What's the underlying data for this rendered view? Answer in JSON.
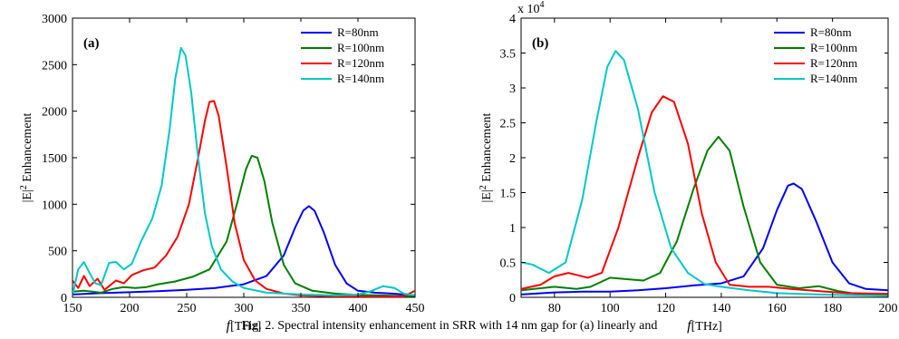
{
  "caption": "Fig. 2. Spectral intensity enhancement in SRR with 14 nm gap for (a) linearly and",
  "chart_data": [
    {
      "type": "line",
      "panel_label": "(a)",
      "xlabel_italic": "f",
      "xlabel_rest": "[THz]",
      "ylabel_main": "|E|",
      "ylabel_sup": "2",
      "ylabel_rest": " Enhancement",
      "xlim": [
        150,
        450
      ],
      "ylim": [
        0,
        3000
      ],
      "xticks": [
        "150",
        "200",
        "250",
        "300",
        "350",
        "400",
        "450"
      ],
      "yticks": [
        "0",
        "500",
        "1000",
        "1500",
        "2000",
        "2500",
        "3000"
      ],
      "y_multiplier": "",
      "grid": false,
      "legend_position": "top-right",
      "series": [
        {
          "name": "R=80nm",
          "color": "#0000ff",
          "points": [
            [
              150,
              30
            ],
            [
              175,
              45
            ],
            [
              200,
              55
            ],
            [
              225,
              65
            ],
            [
              250,
              80
            ],
            [
              275,
              100
            ],
            [
              300,
              140
            ],
            [
              320,
              230
            ],
            [
              335,
              450
            ],
            [
              345,
              750
            ],
            [
              352,
              930
            ],
            [
              357,
              980
            ],
            [
              362,
              930
            ],
            [
              370,
              700
            ],
            [
              380,
              350
            ],
            [
              390,
              150
            ],
            [
              400,
              70
            ],
            [
              415,
              50
            ],
            [
              430,
              40
            ],
            [
              450,
              20
            ]
          ]
        },
        {
          "name": "R=100nm",
          "color": "#008000",
          "points": [
            [
              150,
              60
            ],
            [
              160,
              70
            ],
            [
              175,
              50
            ],
            [
              185,
              90
            ],
            [
              195,
              110
            ],
            [
              205,
              100
            ],
            [
              215,
              110
            ],
            [
              225,
              140
            ],
            [
              240,
              170
            ],
            [
              255,
              220
            ],
            [
              270,
              300
            ],
            [
              285,
              600
            ],
            [
              295,
              1050
            ],
            [
              302,
              1380
            ],
            [
              307,
              1520
            ],
            [
              312,
              1500
            ],
            [
              318,
              1250
            ],
            [
              325,
              800
            ],
            [
              335,
              350
            ],
            [
              345,
              150
            ],
            [
              360,
              70
            ],
            [
              380,
              40
            ],
            [
              400,
              25
            ],
            [
              420,
              20
            ],
            [
              450,
              10
            ]
          ]
        },
        {
          "name": "R=120nm",
          "color": "#ff0000",
          "points": [
            [
              150,
              180
            ],
            [
              155,
              100
            ],
            [
              160,
              230
            ],
            [
              165,
              120
            ],
            [
              172,
              200
            ],
            [
              178,
              80
            ],
            [
              188,
              180
            ],
            [
              195,
              150
            ],
            [
              202,
              240
            ],
            [
              212,
              290
            ],
            [
              222,
              320
            ],
            [
              232,
              450
            ],
            [
              242,
              650
            ],
            [
              252,
              1000
            ],
            [
              260,
              1500
            ],
            [
              266,
              1900
            ],
            [
              270,
              2100
            ],
            [
              274,
              2110
            ],
            [
              278,
              1950
            ],
            [
              285,
              1400
            ],
            [
              292,
              800
            ],
            [
              300,
              400
            ],
            [
              310,
              180
            ],
            [
              320,
              90
            ],
            [
              335,
              40
            ],
            [
              350,
              20
            ],
            [
              380,
              10
            ],
            [
              420,
              5
            ],
            [
              440,
              10
            ],
            [
              450,
              70
            ]
          ]
        },
        {
          "name": "R=140nm",
          "color": "#00c8c8",
          "points": [
            [
              150,
              20
            ],
            [
              155,
              300
            ],
            [
              160,
              380
            ],
            [
              165,
              260
            ],
            [
              170,
              150
            ],
            [
              175,
              130
            ],
            [
              182,
              370
            ],
            [
              188,
              380
            ],
            [
              195,
              300
            ],
            [
              202,
              360
            ],
            [
              210,
              600
            ],
            [
              220,
              850
            ],
            [
              228,
              1200
            ],
            [
              235,
              1800
            ],
            [
              240,
              2350
            ],
            [
              245,
              2680
            ],
            [
              249,
              2600
            ],
            [
              254,
              2200
            ],
            [
              260,
              1500
            ],
            [
              266,
              900
            ],
            [
              272,
              550
            ],
            [
              280,
              300
            ],
            [
              290,
              170
            ],
            [
              300,
              100
            ],
            [
              320,
              50
            ],
            [
              350,
              30
            ],
            [
              380,
              20
            ],
            [
              400,
              30
            ],
            [
              410,
              60
            ],
            [
              422,
              120
            ],
            [
              432,
              100
            ],
            [
              440,
              40
            ],
            [
              450,
              20
            ]
          ]
        }
      ]
    },
    {
      "type": "line",
      "panel_label": "(b)",
      "xlabel_italic": "f",
      "xlabel_rest": "[THz]",
      "ylabel_main": "|E|",
      "ylabel_sup": "2",
      "ylabel_rest": " Enhancement",
      "xlim": [
        68,
        200
      ],
      "ylim": [
        0,
        40000
      ],
      "xticks": [
        "80",
        "100",
        "120",
        "140",
        "160",
        "180",
        "200"
      ],
      "yticks": [
        "0",
        "0.5",
        "1",
        "1.5",
        "2",
        "2.5",
        "3",
        "3.5",
        "4"
      ],
      "y_multiplier": "x 10",
      "y_multiplier_exp": "4",
      "grid": false,
      "legend_position": "top-right",
      "series": [
        {
          "name": "R=80nm",
          "color": "#0000ff",
          "points": [
            [
              68,
              400
            ],
            [
              80,
              700
            ],
            [
              90,
              800
            ],
            [
              100,
              800
            ],
            [
              110,
              1000
            ],
            [
              120,
              1300
            ],
            [
              130,
              1700
            ],
            [
              140,
              2000
            ],
            [
              148,
              3000
            ],
            [
              155,
              7000
            ],
            [
              160,
              12500
            ],
            [
              164,
              16000
            ],
            [
              166,
              16300
            ],
            [
              169,
              15500
            ],
            [
              174,
              11000
            ],
            [
              180,
              5000
            ],
            [
              186,
              2000
            ],
            [
              192,
              1200
            ],
            [
              200,
              1000
            ]
          ]
        },
        {
          "name": "R=100nm",
          "color": "#008000",
          "points": [
            [
              68,
              1000
            ],
            [
              75,
              1300
            ],
            [
              80,
              1500
            ],
            [
              88,
              1200
            ],
            [
              93,
              1500
            ],
            [
              100,
              2800
            ],
            [
              106,
              2600
            ],
            [
              112,
              2400
            ],
            [
              118,
              3500
            ],
            [
              124,
              8000
            ],
            [
              130,
              15500
            ],
            [
              135,
              21000
            ],
            [
              139,
              23000
            ],
            [
              143,
              21000
            ],
            [
              148,
              13000
            ],
            [
              154,
              5000
            ],
            [
              160,
              1800
            ],
            [
              168,
              1300
            ],
            [
              175,
              1600
            ],
            [
              182,
              900
            ],
            [
              190,
              400
            ],
            [
              200,
              300
            ]
          ]
        },
        {
          "name": "R=120nm",
          "color": "#ff0000",
          "points": [
            [
              68,
              1200
            ],
            [
              75,
              1800
            ],
            [
              80,
              3000
            ],
            [
              85,
              3500
            ],
            [
              92,
              2800
            ],
            [
              97,
              3500
            ],
            [
              103,
              10000
            ],
            [
              110,
              20000
            ],
            [
              115,
              26500
            ],
            [
              119,
              28800
            ],
            [
              123,
              28000
            ],
            [
              128,
              22000
            ],
            [
              133,
              12000
            ],
            [
              138,
              5000
            ],
            [
              143,
              1800
            ],
            [
              150,
              1500
            ],
            [
              157,
              1500
            ],
            [
              165,
              1200
            ],
            [
              175,
              900
            ],
            [
              185,
              600
            ],
            [
              200,
              500
            ]
          ]
        },
        {
          "name": "R=140nm",
          "color": "#00c8c8",
          "points": [
            [
              68,
              5000
            ],
            [
              72,
              4700
            ],
            [
              78,
              3500
            ],
            [
              84,
              5000
            ],
            [
              90,
              14000
            ],
            [
              95,
              25000
            ],
            [
              99,
              33000
            ],
            [
              102,
              35300
            ],
            [
              105,
              34000
            ],
            [
              110,
              27000
            ],
            [
              116,
              15000
            ],
            [
              122,
              7000
            ],
            [
              128,
              3500
            ],
            [
              134,
              1900
            ],
            [
              140,
              1500
            ],
            [
              150,
              1000
            ],
            [
              160,
              600
            ],
            [
              175,
              400
            ],
            [
              200,
              200
            ]
          ]
        }
      ]
    }
  ]
}
